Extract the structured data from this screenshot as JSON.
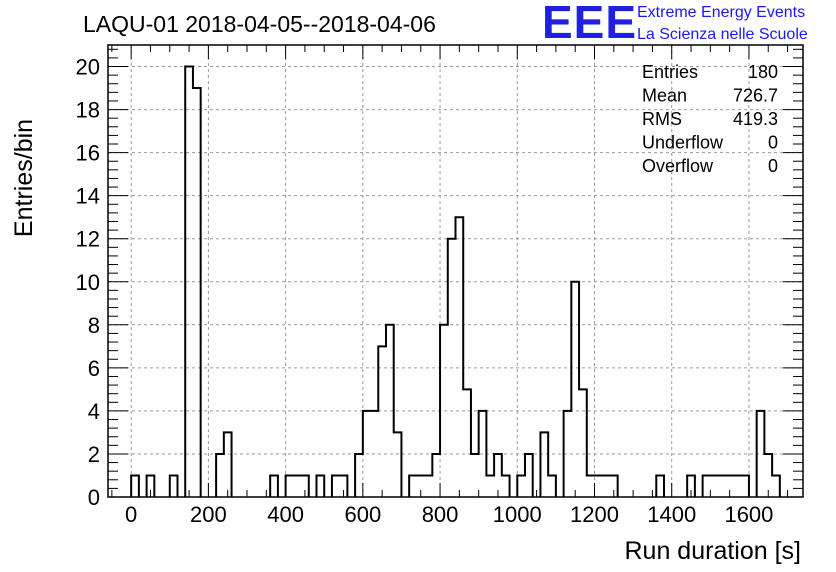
{
  "chart_data": {
    "type": "histogram",
    "title": "LAQU-01 2018-04-05--2018-04-06",
    "xlabel": "Run duration [s]",
    "ylabel": "Entries/bin",
    "xlim": [
      -60,
      1740
    ],
    "ylim": [
      0,
      21
    ],
    "bin_width": 20,
    "x_ticks": [
      0,
      200,
      400,
      600,
      800,
      1000,
      1200,
      1400,
      1600
    ],
    "y_ticks": [
      0,
      2,
      4,
      6,
      8,
      10,
      12,
      14,
      16,
      18,
      20
    ],
    "grid": true,
    "bins": [
      {
        "low": 0,
        "count": 1
      },
      {
        "low": 40,
        "count": 1
      },
      {
        "low": 100,
        "count": 1
      },
      {
        "low": 140,
        "count": 20
      },
      {
        "low": 160,
        "count": 19
      },
      {
        "low": 220,
        "count": 2
      },
      {
        "low": 240,
        "count": 3
      },
      {
        "low": 360,
        "count": 1
      },
      {
        "low": 400,
        "count": 1
      },
      {
        "low": 420,
        "count": 1
      },
      {
        "low": 440,
        "count": 1
      },
      {
        "low": 480,
        "count": 1
      },
      {
        "low": 520,
        "count": 1
      },
      {
        "low": 540,
        "count": 1
      },
      {
        "low": 580,
        "count": 2
      },
      {
        "low": 600,
        "count": 4
      },
      {
        "low": 620,
        "count": 4
      },
      {
        "low": 640,
        "count": 7
      },
      {
        "low": 660,
        "count": 8
      },
      {
        "low": 680,
        "count": 3
      },
      {
        "low": 720,
        "count": 1
      },
      {
        "low": 740,
        "count": 1
      },
      {
        "low": 760,
        "count": 1
      },
      {
        "low": 780,
        "count": 2
      },
      {
        "low": 800,
        "count": 8
      },
      {
        "low": 820,
        "count": 12
      },
      {
        "low": 840,
        "count": 13
      },
      {
        "low": 860,
        "count": 5
      },
      {
        "low": 880,
        "count": 2
      },
      {
        "low": 900,
        "count": 4
      },
      {
        "low": 920,
        "count": 1
      },
      {
        "low": 940,
        "count": 2
      },
      {
        "low": 960,
        "count": 1
      },
      {
        "low": 1000,
        "count": 1
      },
      {
        "low": 1020,
        "count": 2
      },
      {
        "low": 1060,
        "count": 3
      },
      {
        "low": 1080,
        "count": 1
      },
      {
        "low": 1120,
        "count": 4
      },
      {
        "low": 1140,
        "count": 10
      },
      {
        "low": 1160,
        "count": 5
      },
      {
        "low": 1180,
        "count": 1
      },
      {
        "low": 1200,
        "count": 1
      },
      {
        "low": 1220,
        "count": 1
      },
      {
        "low": 1240,
        "count": 1
      },
      {
        "low": 1360,
        "count": 1
      },
      {
        "low": 1440,
        "count": 1
      },
      {
        "low": 1480,
        "count": 1
      },
      {
        "low": 1500,
        "count": 1
      },
      {
        "low": 1520,
        "count": 1
      },
      {
        "low": 1540,
        "count": 1
      },
      {
        "low": 1560,
        "count": 1
      },
      {
        "low": 1580,
        "count": 1
      },
      {
        "low": 1620,
        "count": 4
      },
      {
        "low": 1640,
        "count": 2
      },
      {
        "low": 1660,
        "count": 1
      }
    ],
    "stats": [
      {
        "label": "Entries",
        "value": "180"
      },
      {
        "label": "Mean",
        "value": "726.7"
      },
      {
        "label": "RMS",
        "value": "419.3"
      },
      {
        "label": "Underflow",
        "value": "0"
      },
      {
        "label": "Overflow",
        "value": "0"
      }
    ],
    "stats_placement": "top-right"
  },
  "logo": {
    "letters": "EEE",
    "line1": "Extreme Energy Events",
    "line2": "La Scienza nelle Scuole",
    "color": "#2020e0"
  },
  "colors": {
    "line": "#000000",
    "grid": "#9a9a9a",
    "background": "#ffffff"
  }
}
